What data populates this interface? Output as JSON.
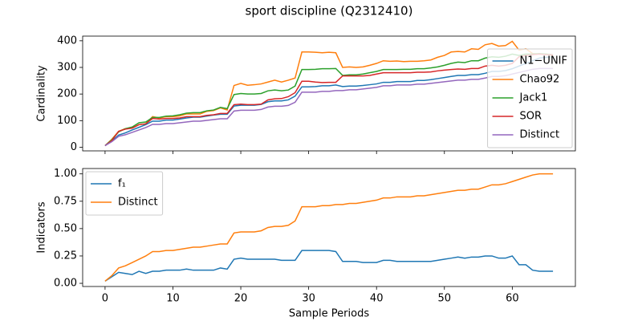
{
  "title": "sport discipline (Q2312410)",
  "chart_data": [
    {
      "type": "line",
      "ylabel": "Cardinality",
      "x": [
        0,
        1,
        2,
        3,
        4,
        5,
        6,
        7,
        8,
        9,
        10,
        11,
        12,
        13,
        14,
        15,
        16,
        17,
        18,
        19,
        20,
        21,
        22,
        23,
        24,
        25,
        26,
        27,
        28,
        29,
        30,
        31,
        32,
        33,
        34,
        35,
        36,
        37,
        38,
        39,
        40,
        41,
        42,
        43,
        44,
        45,
        46,
        47,
        48,
        49,
        50,
        51,
        52,
        53,
        54,
        55,
        56,
        57,
        58,
        59,
        60,
        61,
        62,
        63,
        64,
        65,
        66
      ],
      "xlim": [
        -3.3,
        69.3
      ],
      "xticks": [
        0,
        10,
        20,
        30,
        40,
        50,
        60
      ],
      "ylim": [
        -13.6,
        417.6
      ],
      "yticks": [
        0,
        100,
        200,
        300,
        400
      ],
      "legend": "lower right",
      "series": [
        {
          "name": "N1−UNIF",
          "color": "#1f77b4",
          "values": [
            6,
            23,
            46,
            54,
            65,
            75,
            85,
            98,
            98,
            102,
            102,
            106,
            110,
            113,
            113,
            117,
            121,
            124,
            124,
            155,
            158,
            158,
            158,
            161,
            171,
            174,
            174,
            178,
            192,
            227,
            227,
            228,
            231,
            231,
            234,
            228,
            230,
            230,
            232,
            235,
            238,
            244,
            244,
            247,
            247,
            247,
            251,
            251,
            254,
            258,
            262,
            266,
            270,
            270,
            273,
            273,
            278,
            285,
            285,
            288,
            295,
            305,
            315,
            325,
            335,
            338,
            340
          ]
        },
        {
          "name": "Chao92",
          "color": "#ff7f0e",
          "values": [
            6,
            30,
            60,
            70,
            72,
            85,
            88,
            115,
            110,
            115,
            115,
            118,
            125,
            125,
            125,
            135,
            138,
            148,
            140,
            232,
            240,
            233,
            235,
            238,
            245,
            252,
            245,
            252,
            260,
            358,
            358,
            357,
            355,
            357,
            355,
            300,
            302,
            300,
            302,
            308,
            315,
            325,
            323,
            324,
            322,
            323,
            323,
            325,
            328,
            338,
            345,
            358,
            360,
            358,
            370,
            368,
            385,
            390,
            380,
            382,
            398,
            365,
            370,
            352,
            350,
            350,
            345
          ]
        },
        {
          "name": "Jack1",
          "color": "#2ca02c",
          "values": [
            6,
            28,
            58,
            70,
            76,
            92,
            95,
            112,
            112,
            117,
            118,
            122,
            128,
            130,
            130,
            137,
            140,
            150,
            145,
            198,
            202,
            200,
            200,
            202,
            212,
            215,
            212,
            215,
            230,
            292,
            292,
            293,
            295,
            295,
            296,
            270,
            272,
            272,
            275,
            280,
            285,
            292,
            292,
            292,
            293,
            293,
            295,
            295,
            298,
            302,
            308,
            315,
            320,
            318,
            325,
            325,
            335,
            340,
            338,
            342,
            350,
            345,
            350,
            350,
            352,
            350,
            348
          ]
        },
        {
          "name": "SOR",
          "color": "#d62728",
          "values": [
            6,
            25,
            60,
            68,
            72,
            85,
            88,
            108,
            106,
            108,
            108,
            110,
            115,
            115,
            115,
            120,
            122,
            127,
            127,
            160,
            162,
            160,
            160,
            162,
            178,
            182,
            183,
            190,
            205,
            248,
            248,
            245,
            243,
            244,
            244,
            268,
            268,
            268,
            268,
            270,
            275,
            280,
            280,
            280,
            280,
            280,
            282,
            282,
            283,
            287,
            290,
            292,
            294,
            293,
            296,
            296,
            305,
            308,
            305,
            308,
            315,
            340,
            345,
            348,
            350,
            348,
            347
          ]
        },
        {
          "name": "Distinct",
          "color": "#9467bd",
          "values": [
            6,
            21,
            41,
            47,
            56,
            65,
            74,
            86,
            86,
            89,
            89,
            92,
            95,
            98,
            98,
            101,
            104,
            107,
            107,
            136,
            139,
            139,
            139,
            142,
            151,
            154,
            154,
            157,
            169,
            207,
            207,
            207,
            210,
            210,
            213,
            213,
            216,
            216,
            219,
            222,
            225,
            231,
            231,
            234,
            234,
            234,
            237,
            237,
            240,
            243,
            246,
            249,
            252,
            252,
            255,
            255,
            260,
            266,
            266,
            269,
            275,
            281,
            287,
            293,
            296,
            296,
            296
          ]
        }
      ]
    },
    {
      "type": "line",
      "ylabel": "Indicators",
      "xlabel": "Sample Periods",
      "x": [
        0,
        1,
        2,
        3,
        4,
        5,
        6,
        7,
        8,
        9,
        10,
        11,
        12,
        13,
        14,
        15,
        16,
        17,
        18,
        19,
        20,
        21,
        22,
        23,
        24,
        25,
        26,
        27,
        28,
        29,
        30,
        31,
        32,
        33,
        34,
        35,
        36,
        37,
        38,
        39,
        40,
        41,
        42,
        43,
        44,
        45,
        46,
        47,
        48,
        49,
        50,
        51,
        52,
        53,
        54,
        55,
        56,
        57,
        58,
        59,
        60,
        61,
        62,
        63,
        64,
        65,
        66
      ],
      "xlim": [
        -3.3,
        69.3
      ],
      "xticks": [
        0,
        10,
        20,
        30,
        40,
        50,
        60
      ],
      "ylim": [
        -0.029,
        1.049
      ],
      "yticks": [
        {
          "value": 0,
          "label": "0.00"
        },
        {
          "value": 0.25,
          "label": "0.25"
        },
        {
          "value": 0.5,
          "label": "0.50"
        },
        {
          "value": 0.75,
          "label": "0.75"
        },
        {
          "value": 1,
          "label": "1.00"
        }
      ],
      "legend": "upper left",
      "series": [
        {
          "name": "f₁",
          "color": "#1f77b4",
          "values": [
            0.02,
            0.06,
            0.1,
            0.09,
            0.08,
            0.11,
            0.09,
            0.11,
            0.11,
            0.12,
            0.12,
            0.12,
            0.13,
            0.12,
            0.12,
            0.12,
            0.12,
            0.14,
            0.13,
            0.22,
            0.23,
            0.22,
            0.22,
            0.22,
            0.22,
            0.22,
            0.21,
            0.21,
            0.21,
            0.3,
            0.3,
            0.3,
            0.3,
            0.3,
            0.29,
            0.2,
            0.2,
            0.2,
            0.19,
            0.19,
            0.19,
            0.21,
            0.21,
            0.2,
            0.2,
            0.2,
            0.2,
            0.2,
            0.2,
            0.21,
            0.22,
            0.23,
            0.24,
            0.23,
            0.24,
            0.24,
            0.25,
            0.25,
            0.23,
            0.23,
            0.25,
            0.17,
            0.17,
            0.12,
            0.11,
            0.11,
            0.11
          ]
        },
        {
          "name": "Distinct",
          "color": "#ff7f0e",
          "values": [
            0.02,
            0.07,
            0.14,
            0.16,
            0.19,
            0.22,
            0.25,
            0.29,
            0.29,
            0.3,
            0.3,
            0.31,
            0.32,
            0.33,
            0.33,
            0.34,
            0.35,
            0.36,
            0.36,
            0.46,
            0.47,
            0.47,
            0.47,
            0.48,
            0.51,
            0.52,
            0.52,
            0.53,
            0.57,
            0.7,
            0.7,
            0.7,
            0.71,
            0.71,
            0.72,
            0.72,
            0.73,
            0.73,
            0.74,
            0.75,
            0.76,
            0.78,
            0.78,
            0.79,
            0.79,
            0.79,
            0.8,
            0.8,
            0.81,
            0.82,
            0.83,
            0.84,
            0.85,
            0.85,
            0.86,
            0.86,
            0.88,
            0.9,
            0.9,
            0.91,
            0.93,
            0.95,
            0.97,
            0.99,
            1.0,
            1.0,
            1.0
          ]
        }
      ]
    }
  ]
}
